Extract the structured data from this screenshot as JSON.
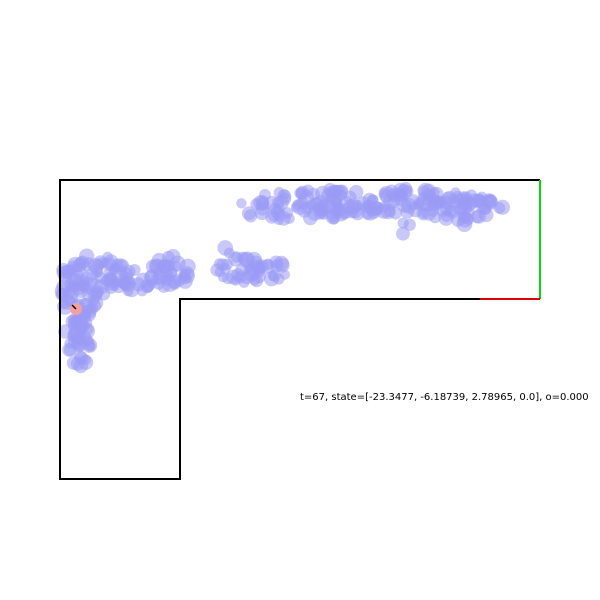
{
  "status_text": "t=67, state=[-23.3477, -6.18739, 2.78965, 0.0], o=0.000",
  "colors": {
    "background": "#ffffff",
    "walls": "#000000",
    "goal_segment": "#00dd00",
    "boundary_segment": "#dd0000",
    "particles": "#9a9af5",
    "agent": "#f4a0a0",
    "heading": "#000000"
  }
}
